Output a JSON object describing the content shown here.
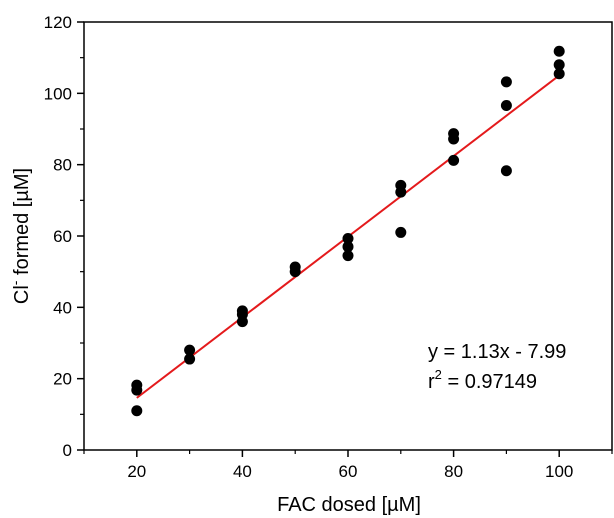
{
  "chart_data": {
    "type": "scatter",
    "xlabel": "FAC dosed [µM]",
    "ylabel_main": "Cl",
    "ylabel_sup": "-",
    "ylabel_rest": " formed [µM]",
    "xlim": [
      10,
      110
    ],
    "ylim": [
      0,
      120
    ],
    "xticks": [
      20,
      40,
      60,
      80,
      100
    ],
    "yticks": [
      0,
      20,
      40,
      60,
      80,
      100,
      120
    ],
    "grid": false,
    "points": [
      {
        "x": 20,
        "y": 18.2
      },
      {
        "x": 20,
        "y": 16.8
      },
      {
        "x": 20,
        "y": 11.0
      },
      {
        "x": 30,
        "y": 28.0
      },
      {
        "x": 30,
        "y": 25.5
      },
      {
        "x": 40,
        "y": 39.0
      },
      {
        "x": 40,
        "y": 38.0
      },
      {
        "x": 40,
        "y": 36.0
      },
      {
        "x": 50,
        "y": 51.3
      },
      {
        "x": 50,
        "y": 50.0
      },
      {
        "x": 60,
        "y": 59.3
      },
      {
        "x": 60,
        "y": 57.0
      },
      {
        "x": 60,
        "y": 54.5
      },
      {
        "x": 70,
        "y": 74.2
      },
      {
        "x": 70,
        "y": 72.3
      },
      {
        "x": 70,
        "y": 61.0
      },
      {
        "x": 80,
        "y": 88.7
      },
      {
        "x": 80,
        "y": 87.2
      },
      {
        "x": 80,
        "y": 81.2
      },
      {
        "x": 90,
        "y": 103.2
      },
      {
        "x": 90,
        "y": 96.6
      },
      {
        "x": 90,
        "y": 78.3
      },
      {
        "x": 100,
        "y": 111.8
      },
      {
        "x": 100,
        "y": 108.0
      },
      {
        "x": 100,
        "y": 105.5
      }
    ],
    "fit": {
      "slope": 1.13,
      "intercept": -7.99,
      "x_range": [
        20,
        100
      ],
      "color": "#e41a1c"
    },
    "point_color": "#000000",
    "annotation_line1": "y = 1.13x - 7.99",
    "annotation_line2_main": "r",
    "annotation_line2_sup": "2",
    "annotation_line2_rest": " = 0.97149"
  }
}
